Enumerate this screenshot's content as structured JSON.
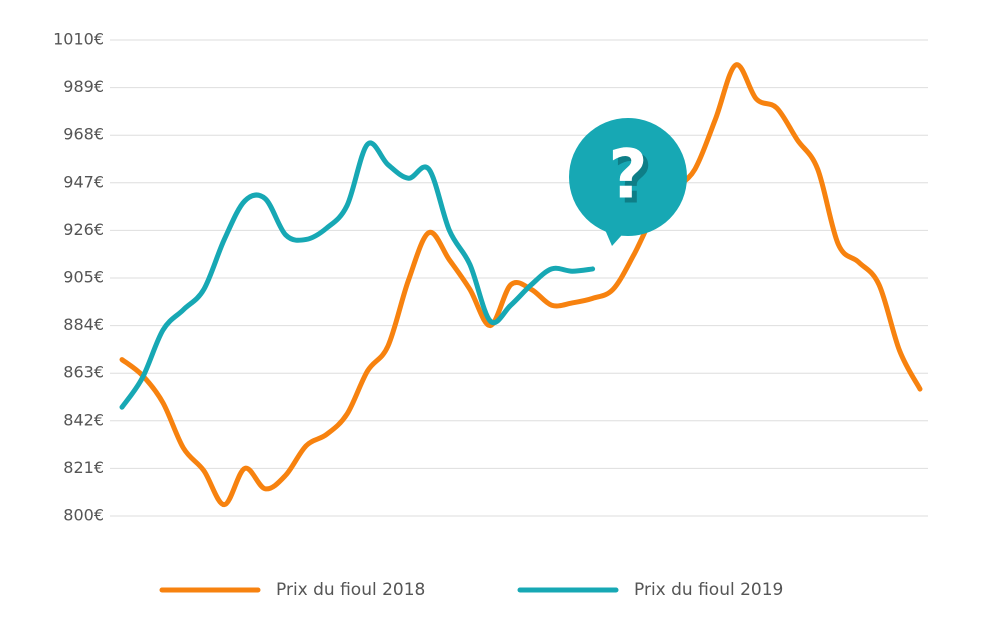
{
  "chart_data": {
    "type": "line",
    "categories": [
      null,
      null,
      null,
      null,
      null,
      null,
      null,
      null,
      null,
      null,
      null,
      null,
      null,
      null,
      null,
      null,
      null,
      null,
      null,
      null,
      null,
      null,
      null,
      null,
      null,
      null,
      null,
      null,
      null,
      null,
      null,
      null,
      null,
      null,
      null,
      null,
      null,
      null,
      null,
      null
    ],
    "series": [
      {
        "name": "Prix du fioul 2018",
        "color": "#f7820f",
        "values": [
          869,
          862,
          850,
          830,
          820,
          805,
          821,
          812,
          818,
          831,
          836,
          845,
          864,
          875,
          904,
          925,
          913,
          900,
          884,
          902,
          900,
          893,
          894,
          896,
          900,
          915,
          933,
          944,
          953,
          975,
          999,
          984,
          980,
          966,
          953,
          920,
          912,
          902,
          873,
          856
        ]
      },
      {
        "name": "Prix du fioul 2019",
        "color": "#17a8b4",
        "values": [
          848,
          861,
          882,
          891,
          900,
          922,
          939,
          940,
          924,
          922,
          927,
          937,
          964,
          955,
          949,
          953,
          926,
          911,
          886,
          893,
          902,
          909,
          908,
          909,
          null,
          null,
          null,
          null,
          null,
          null,
          null,
          null,
          null,
          null,
          null,
          null,
          null,
          null,
          null,
          null
        ]
      }
    ],
    "ylim": [
      800,
      1010
    ],
    "yticks": [
      {
        "value": 800,
        "label": "800€"
      },
      {
        "value": 821,
        "label": "821€"
      },
      {
        "value": 842,
        "label": "842€"
      },
      {
        "value": 863,
        "label": "863€"
      },
      {
        "value": 884,
        "label": "884€"
      },
      {
        "value": 905,
        "label": "905€"
      },
      {
        "value": 926,
        "label": "926€"
      },
      {
        "value": 947,
        "label": "947€"
      },
      {
        "value": 968,
        "label": "968€"
      },
      {
        "value": 989,
        "label": "989€"
      },
      {
        "value": 1010,
        "label": "1010€"
      }
    ],
    "grid": true,
    "legend": "bottom",
    "annotation": "?"
  }
}
